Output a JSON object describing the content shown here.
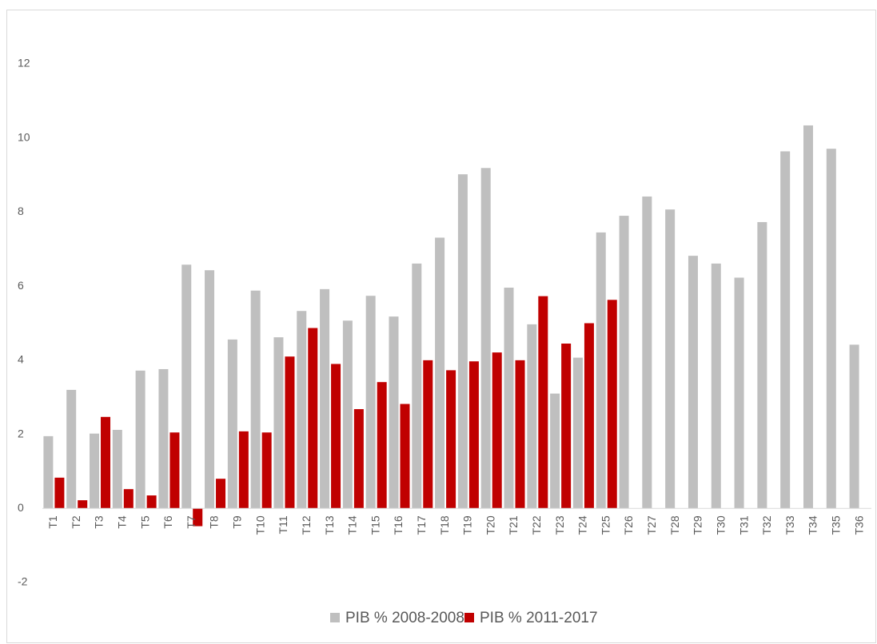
{
  "chart_data": {
    "type": "bar",
    "categories": [
      "T1",
      "T2",
      "T3",
      "T4",
      "T5",
      "T6",
      "T7",
      "T8",
      "T9",
      "T10",
      "T11",
      "T12",
      "T13",
      "T14",
      "T15",
      "T16",
      "T17",
      "T18",
      "T19",
      "T20",
      "T21",
      "T22",
      "T23",
      "T24",
      "T25",
      "T26",
      "T27",
      "T28",
      "T29",
      "T30",
      "T31",
      "T32",
      "T33",
      "T34",
      "T35",
      "T36"
    ],
    "series": [
      {
        "name": "PIB % 2008-2008",
        "color": "#bfbfbf",
        "values": [
          1.95,
          3.2,
          2.02,
          2.12,
          3.72,
          3.76,
          6.58,
          6.43,
          4.56,
          5.88,
          4.62,
          5.33,
          5.92,
          5.07,
          5.74,
          5.18,
          6.61,
          7.31,
          9.02,
          9.19,
          5.96,
          4.97,
          3.1,
          4.07,
          7.45,
          7.9,
          8.42,
          8.07,
          6.82,
          6.61,
          6.23,
          7.73,
          9.64,
          10.34,
          9.71,
          4.42
        ]
      },
      {
        "name": "PIB % 2011-2017",
        "color": "#c00000",
        "values": [
          0.83,
          0.22,
          2.47,
          0.52,
          0.35,
          2.05,
          -0.48,
          0.8,
          2.08,
          2.05,
          4.1,
          4.87,
          3.9,
          2.68,
          3.41,
          2.82,
          4.0,
          3.73,
          3.97,
          4.21,
          4.0,
          5.73,
          4.45,
          5.0,
          5.63,
          null,
          null,
          null,
          null,
          null,
          null,
          null,
          null,
          null,
          null,
          null
        ]
      }
    ],
    "ylim": [
      -2,
      12
    ],
    "yticks": [
      -2,
      0,
      2,
      4,
      6,
      8,
      10,
      12
    ],
    "grid": false,
    "legend": "bottom"
  }
}
